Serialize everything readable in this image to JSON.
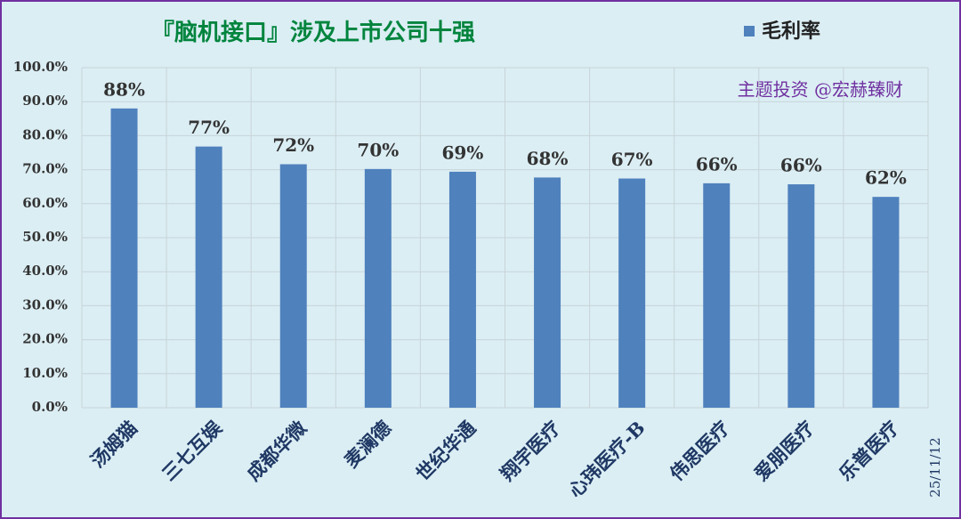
{
  "chart_data": {
    "type": "bar",
    "title": "『脑机接口』涉及上市公司十强",
    "categories": [
      "汤姆猫",
      "三七互娱",
      "成都华微",
      "麦澜德",
      "世纪华通",
      "翔宇医疗",
      "心玮医疗-B",
      "伟思医疗",
      "爱朋医疗",
      "乐普医疗"
    ],
    "series": [
      {
        "name": "毛利率",
        "color": "#4f81bd",
        "values": [
          88,
          76.8,
          71.6,
          70.2,
          69.4,
          67.7,
          67.4,
          66.0,
          65.7,
          62.0
        ],
        "value_labels": [
          "88%",
          "77%",
          "72%",
          "70%",
          "69%",
          "68%",
          "67%",
          "66%",
          "66%",
          "62%"
        ]
      }
    ],
    "ylim": [
      0,
      100
    ],
    "yticks": [
      {
        "value": 0,
        "label": "0.0%"
      },
      {
        "value": 10,
        "label": "10.0%"
      },
      {
        "value": 20,
        "label": "20.0%"
      },
      {
        "value": 30,
        "label": "30.0%"
      },
      {
        "value": 40,
        "label": "40.0%"
      },
      {
        "value": 50,
        "label": "50.0%"
      },
      {
        "value": 60,
        "label": "60.0%"
      },
      {
        "value": 70,
        "label": "70.0%"
      },
      {
        "value": 80,
        "label": "80.0%"
      },
      {
        "value": 90,
        "label": "90.0%"
      },
      {
        "value": 100,
        "label": "100.0%"
      }
    ],
    "grid": true,
    "legend": "top-right",
    "annotations": [
      "主题投资 @宏赫臻财",
      "25/11/12"
    ]
  }
}
